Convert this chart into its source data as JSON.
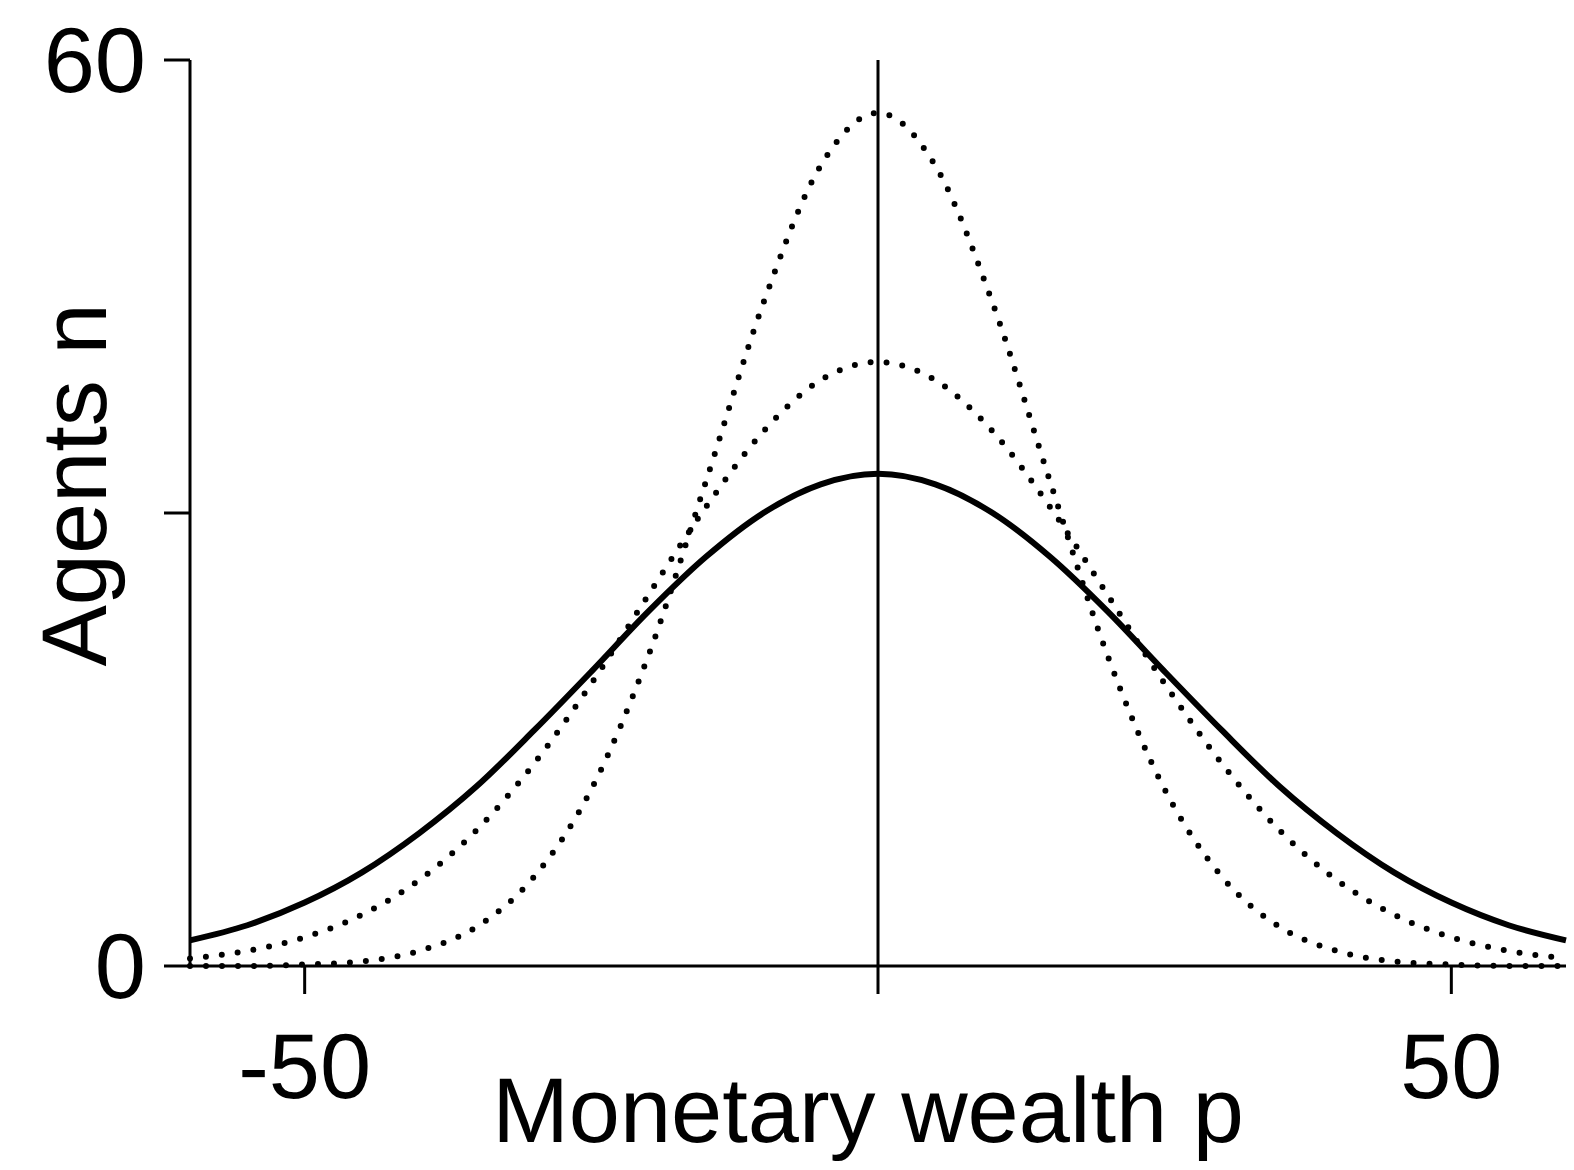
{
  "chart_data": {
    "type": "line",
    "xlabel": "Monetary wealth p",
    "ylabel": "Agents n",
    "x": [
      -60,
      -55,
      -50,
      -45,
      -40,
      -35,
      -30,
      -25,
      -20,
      -15,
      -10,
      -5,
      0,
      5,
      10,
      15,
      20,
      25,
      30,
      35,
      40,
      45,
      50,
      55,
      60
    ],
    "xlim": [
      -60,
      60
    ],
    "ylim": [
      0,
      60
    ],
    "xticks": [
      -50,
      {
        "value": 0,
        "label": null
      },
      50
    ],
    "yticks": [
      0,
      {
        "value": 30,
        "label": null
      },
      60
    ],
    "ref_lines": [
      {
        "axis": "x",
        "value": 0
      }
    ],
    "series": [
      {
        "color": "#000000",
        "line_style": "solid",
        "values": [
          1.7,
          2.7,
          4.2,
          6.2,
          8.8,
          11.9,
          15.6,
          19.5,
          23.5,
          27.1,
          30.0,
          31.9,
          32.6,
          31.9,
          30.0,
          27.1,
          23.5,
          19.5,
          15.6,
          11.9,
          8.8,
          6.2,
          4.2,
          2.7,
          1.7
        ]
      },
      {
        "color": "#000000",
        "line_style": "dotted",
        "values": [
          0.5,
          1.0,
          1.9,
          3.4,
          5.7,
          9.0,
          13.4,
          18.7,
          24.6,
          30.4,
          35.4,
          38.8,
          40.0,
          38.8,
          35.4,
          30.4,
          24.6,
          18.7,
          13.4,
          9.0,
          5.7,
          3.4,
          1.9,
          1.0,
          0.5
        ]
      },
      {
        "color": "#000000",
        "line_style": "dotted",
        "values": [
          0.0,
          0.0,
          0.1,
          0.3,
          1.0,
          2.6,
          5.9,
          11.7,
          20.6,
          32.1,
          43.9,
          53.0,
          56.5,
          53.0,
          43.9,
          32.1,
          20.6,
          11.7,
          5.9,
          2.6,
          1.0,
          0.3,
          0.1,
          0.0,
          0.0
        ]
      }
    ]
  }
}
